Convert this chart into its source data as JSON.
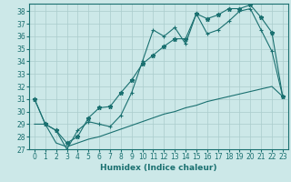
{
  "xlabel": "Humidex (Indice chaleur)",
  "bg_color": "#cce8e8",
  "grid_color": "#aacccc",
  "line_color": "#1a7070",
  "xlim": [
    -0.5,
    23.5
  ],
  "ylim": [
    27,
    38.6
  ],
  "yticks": [
    27,
    28,
    29,
    30,
    31,
    32,
    33,
    34,
    35,
    36,
    37,
    38
  ],
  "xticks": [
    0,
    1,
    2,
    3,
    4,
    5,
    6,
    7,
    8,
    9,
    10,
    11,
    12,
    13,
    14,
    15,
    16,
    17,
    18,
    19,
    20,
    21,
    22,
    23
  ],
  "line1_x": [
    0,
    1,
    2,
    3,
    4,
    5,
    6,
    7,
    8,
    9,
    10,
    11,
    12,
    13,
    14,
    15,
    16,
    17,
    18,
    19,
    20,
    21,
    22,
    23
  ],
  "line1_y": [
    31.0,
    29.0,
    28.5,
    27.0,
    28.5,
    29.2,
    29.0,
    28.8,
    29.7,
    31.5,
    34.0,
    36.5,
    36.0,
    36.7,
    35.4,
    37.8,
    36.2,
    36.5,
    37.2,
    38.0,
    38.2,
    36.5,
    34.8,
    31.2
  ],
  "line2_x": [
    0,
    1,
    2,
    3,
    4,
    5,
    6,
    7,
    8,
    9,
    10,
    11,
    12,
    13,
    14,
    15,
    16,
    17,
    18,
    19,
    20,
    21,
    22,
    23
  ],
  "line2_y": [
    31.0,
    29.0,
    28.5,
    27.5,
    28.0,
    29.5,
    30.3,
    30.4,
    31.5,
    32.5,
    33.8,
    34.5,
    35.2,
    35.8,
    35.8,
    37.8,
    37.4,
    37.7,
    38.2,
    38.2,
    38.5,
    37.5,
    36.3,
    31.2
  ],
  "line3_x": [
    0,
    1,
    2,
    3,
    4,
    5,
    6,
    7,
    8,
    9,
    10,
    11,
    12,
    13,
    14,
    15,
    16,
    17,
    18,
    19,
    20,
    21,
    22,
    23
  ],
  "line3_y": [
    29.0,
    29.0,
    27.5,
    27.2,
    27.5,
    27.8,
    28.0,
    28.3,
    28.6,
    28.9,
    29.2,
    29.5,
    29.8,
    30.0,
    30.3,
    30.5,
    30.8,
    31.0,
    31.2,
    31.4,
    31.6,
    31.8,
    32.0,
    31.2
  ]
}
